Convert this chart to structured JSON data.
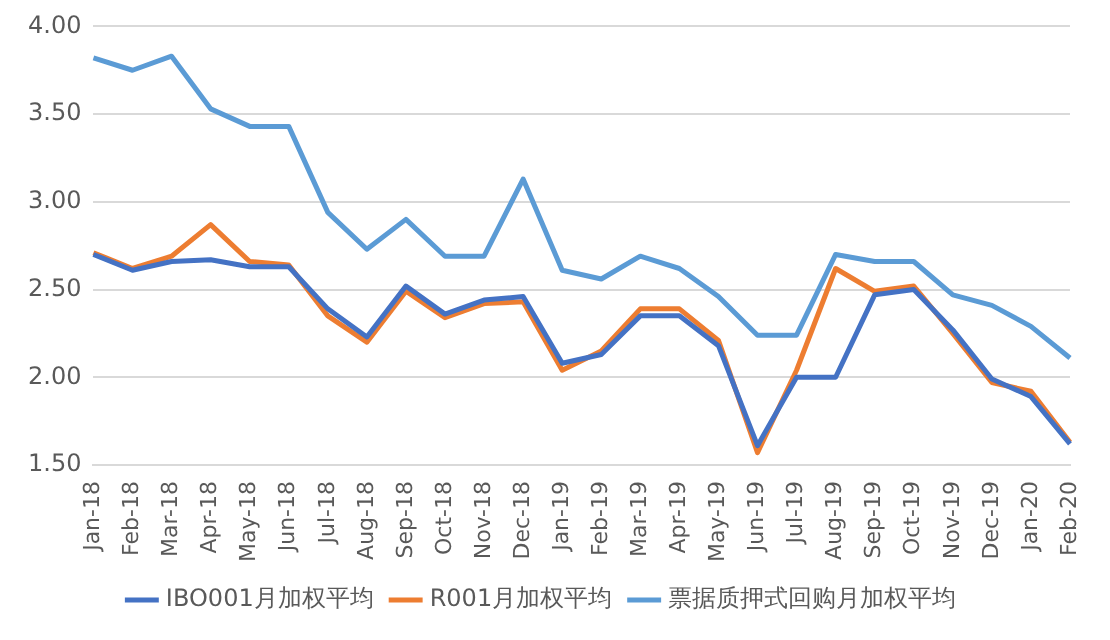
{
  "chart_data": {
    "type": "line",
    "categories": [
      "Jan-18",
      "Feb-18",
      "Mar-18",
      "Apr-18",
      "May-18",
      "Jun-18",
      "Jul-18",
      "Aug-18",
      "Sep-18",
      "Oct-18",
      "Nov-18",
      "Dec-18",
      "Jan-19",
      "Feb-19",
      "Mar-19",
      "Apr-19",
      "May-19",
      "Jun-19",
      "Jul-19",
      "Aug-19",
      "Sep-19",
      "Oct-19",
      "Nov-19",
      "Dec-19",
      "Jan-20",
      "Feb-20"
    ],
    "series": [
      {
        "name": "IBO001月加权平均",
        "color": "#4472c4",
        "values": [
          2.7,
          2.61,
          2.66,
          2.67,
          2.63,
          2.63,
          2.39,
          2.23,
          2.52,
          2.36,
          2.44,
          2.46,
          2.08,
          2.13,
          2.35,
          2.35,
          2.18,
          1.61,
          2.0,
          2.0,
          2.47,
          2.5,
          2.27,
          1.99,
          1.89,
          1.62
        ]
      },
      {
        "name": "R001月加权平均",
        "color": "#ed7d31",
        "values": [
          2.71,
          2.62,
          2.69,
          2.87,
          2.66,
          2.64,
          2.35,
          2.2,
          2.49,
          2.34,
          2.42,
          2.43,
          2.04,
          2.15,
          2.39,
          2.39,
          2.21,
          1.57,
          2.04,
          2.62,
          2.49,
          2.52,
          2.25,
          1.97,
          1.92,
          1.63
        ]
      },
      {
        "name": "票据质押式回购月加权平均",
        "color": "#5b9bd5",
        "values": [
          3.82,
          3.75,
          3.83,
          3.53,
          3.43,
          3.43,
          2.94,
          2.73,
          2.9,
          2.69,
          2.69,
          3.13,
          2.61,
          2.56,
          2.69,
          2.62,
          2.46,
          2.24,
          2.24,
          2.7,
          2.66,
          2.66,
          2.47,
          2.41,
          2.29,
          2.11
        ]
      }
    ],
    "ylim": [
      1.5,
      4.0
    ],
    "yticks": [
      {
        "value": 1.5,
        "label": "1.50"
      },
      {
        "value": 2.0,
        "label": "2.00"
      },
      {
        "value": 2.5,
        "label": "2.50"
      },
      {
        "value": 3.0,
        "label": "3.00"
      },
      {
        "value": 3.5,
        "label": "3.50"
      },
      {
        "value": 4.0,
        "label": "4.00"
      }
    ],
    "grid": "y",
    "legend": "bottom",
    "marker": "none",
    "line_style": "solid"
  }
}
